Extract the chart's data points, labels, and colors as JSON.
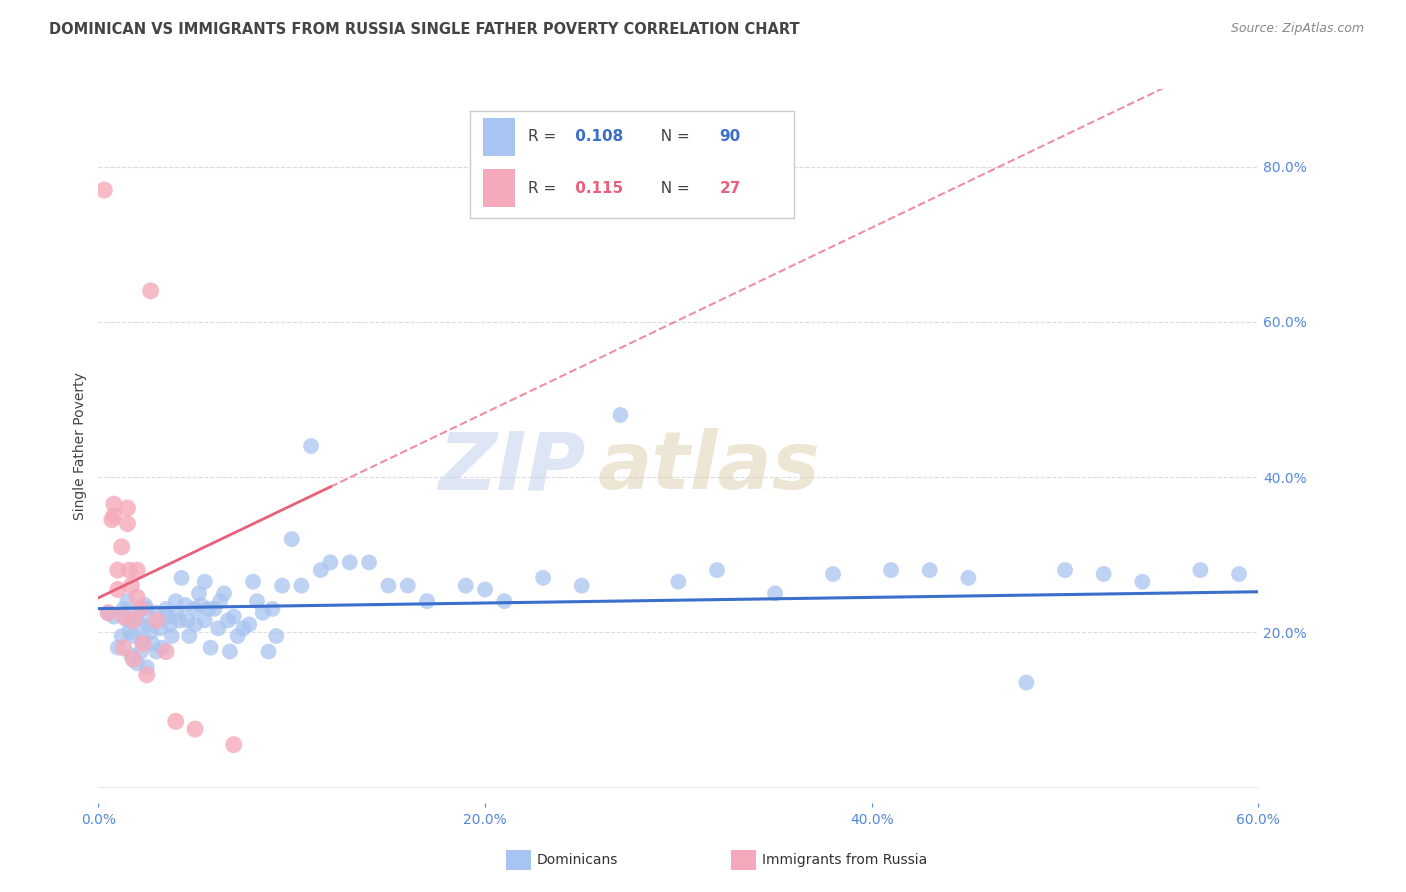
{
  "title": "DOMINICAN VS IMMIGRANTS FROM RUSSIA SINGLE FATHER POVERTY CORRELATION CHART",
  "source": "Source: ZipAtlas.com",
  "ylabel": "Single Father Poverty",
  "right_ytick_labels": [
    "20.0%",
    "40.0%",
    "60.0%",
    "80.0%"
  ],
  "right_ytick_values": [
    0.2,
    0.4,
    0.6,
    0.8
  ],
  "xlim": [
    0.0,
    0.6
  ],
  "ylim": [
    -0.02,
    0.9
  ],
  "xtick_labels": [
    "0.0%",
    "20.0%",
    "40.0%",
    "60.0%"
  ],
  "xtick_values": [
    0.0,
    0.2,
    0.4,
    0.6
  ],
  "blue_R": 0.108,
  "blue_N": 90,
  "pink_R": 0.115,
  "pink_N": 27,
  "legend_label_blue": "Dominicans",
  "legend_label_pink": "Immigrants from Russia",
  "watermark_zip": "ZIP",
  "watermark_atlas": "atlas",
  "blue_color": "#A8C4F0",
  "pink_color": "#F5AABB",
  "blue_line_color": "#3B6FCC",
  "pink_line_color": "#E8607A",
  "title_color": "#444444",
  "axis_label_color": "#5588DD",
  "background_color": "#FFFFFF",
  "grid_color": "#DDDDDD",
  "blue_dots_x": [
    0.005,
    0.008,
    0.01,
    0.012,
    0.013,
    0.015,
    0.015,
    0.016,
    0.017,
    0.018,
    0.02,
    0.02,
    0.022,
    0.022,
    0.023,
    0.024,
    0.025,
    0.025,
    0.026,
    0.027,
    0.028,
    0.03,
    0.03,
    0.032,
    0.033,
    0.035,
    0.036,
    0.037,
    0.038,
    0.04,
    0.04,
    0.042,
    0.043,
    0.045,
    0.046,
    0.047,
    0.05,
    0.05,
    0.052,
    0.053,
    0.055,
    0.055,
    0.057,
    0.058,
    0.06,
    0.062,
    0.063,
    0.065,
    0.067,
    0.068,
    0.07,
    0.072,
    0.075,
    0.078,
    0.08,
    0.082,
    0.085,
    0.088,
    0.09,
    0.092,
    0.095,
    0.1,
    0.105,
    0.11,
    0.115,
    0.12,
    0.13,
    0.14,
    0.15,
    0.16,
    0.17,
    0.19,
    0.2,
    0.21,
    0.23,
    0.25,
    0.27,
    0.3,
    0.32,
    0.35,
    0.38,
    0.41,
    0.43,
    0.45,
    0.48,
    0.5,
    0.52,
    0.54,
    0.57,
    0.59
  ],
  "blue_dots_y": [
    0.225,
    0.22,
    0.18,
    0.195,
    0.23,
    0.215,
    0.24,
    0.2,
    0.17,
    0.195,
    0.16,
    0.225,
    0.175,
    0.21,
    0.19,
    0.235,
    0.155,
    0.23,
    0.21,
    0.2,
    0.185,
    0.175,
    0.225,
    0.205,
    0.18,
    0.23,
    0.22,
    0.21,
    0.195,
    0.225,
    0.24,
    0.215,
    0.27,
    0.235,
    0.215,
    0.195,
    0.21,
    0.23,
    0.25,
    0.235,
    0.215,
    0.265,
    0.23,
    0.18,
    0.23,
    0.205,
    0.24,
    0.25,
    0.215,
    0.175,
    0.22,
    0.195,
    0.205,
    0.21,
    0.265,
    0.24,
    0.225,
    0.175,
    0.23,
    0.195,
    0.26,
    0.32,
    0.26,
    0.44,
    0.28,
    0.29,
    0.29,
    0.29,
    0.26,
    0.26,
    0.24,
    0.26,
    0.255,
    0.24,
    0.27,
    0.26,
    0.48,
    0.265,
    0.28,
    0.25,
    0.275,
    0.28,
    0.28,
    0.27,
    0.135,
    0.28,
    0.275,
    0.265,
    0.28,
    0.275
  ],
  "pink_dots_x": [
    0.003,
    0.005,
    0.007,
    0.008,
    0.008,
    0.01,
    0.01,
    0.012,
    0.013,
    0.013,
    0.015,
    0.015,
    0.016,
    0.017,
    0.018,
    0.018,
    0.02,
    0.02,
    0.022,
    0.023,
    0.025,
    0.027,
    0.03,
    0.035,
    0.04,
    0.05,
    0.07
  ],
  "pink_dots_y": [
    0.77,
    0.225,
    0.345,
    0.35,
    0.365,
    0.255,
    0.28,
    0.31,
    0.22,
    0.18,
    0.34,
    0.36,
    0.28,
    0.26,
    0.215,
    0.165,
    0.28,
    0.245,
    0.23,
    0.185,
    0.145,
    0.64,
    0.215,
    0.175,
    0.085,
    0.075,
    0.055
  ]
}
